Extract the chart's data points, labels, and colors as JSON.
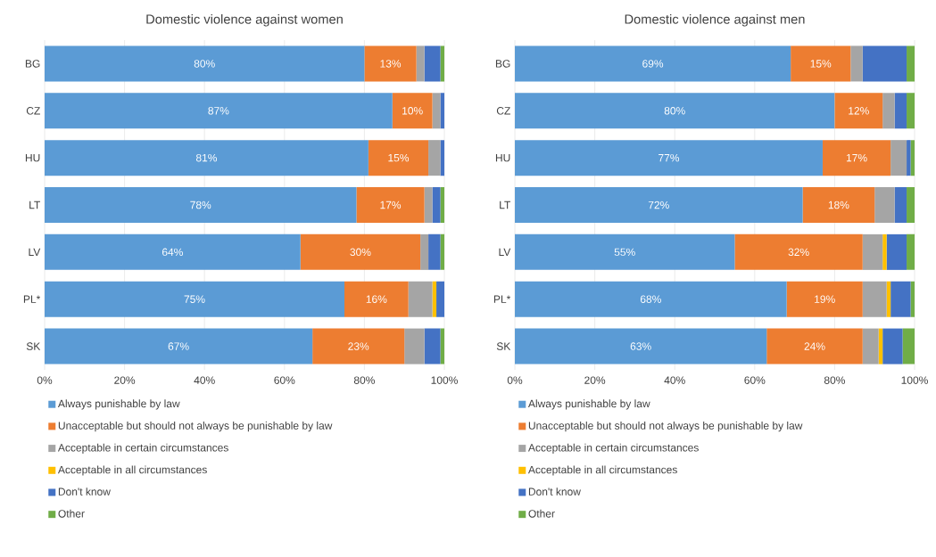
{
  "chart_data": [
    {
      "type": "bar",
      "orientation": "horizontal",
      "stacked": true,
      "title": "Domestic violence against women",
      "categories": [
        "BG",
        "CZ",
        "HU",
        "LT",
        "LV",
        "PL*",
        "SK"
      ],
      "xlim": [
        0,
        100
      ],
      "xticks": [
        {
          "value": 0,
          "label": "0%"
        },
        {
          "value": 20,
          "label": "20%"
        },
        {
          "value": 40,
          "label": "40%"
        },
        {
          "value": 60,
          "label": "60%"
        },
        {
          "value": 80,
          "label": "80%"
        },
        {
          "value": 100,
          "label": "100%"
        }
      ],
      "grid": "x",
      "legend": "bottom",
      "series": [
        {
          "name": "Always punishable by law",
          "color": "#5b9bd5",
          "values": [
            80,
            87,
            81,
            78,
            64,
            75,
            67
          ],
          "value_labels": [
            "80%",
            "87%",
            "81%",
            "78%",
            "64%",
            "75%",
            "67%"
          ]
        },
        {
          "name": "Unacceptable but should not always be punishable by law",
          "color": "#ed7d31",
          "values": [
            13,
            10,
            15,
            17,
            30,
            16,
            23
          ],
          "value_labels": [
            "13%",
            "10%",
            "15%",
            "17%",
            "30%",
            "16%",
            "23%"
          ]
        },
        {
          "name": "Acceptable in certain circumstances",
          "color": "#a5a5a5",
          "values": [
            2,
            2,
            3,
            2,
            2,
            6,
            5
          ]
        },
        {
          "name": "Acceptable in all circumstances",
          "color": "#ffc000",
          "values": [
            0,
            0,
            0,
            0,
            0,
            1,
            0
          ]
        },
        {
          "name": "Don't know",
          "color": "#4472c4",
          "values": [
            4,
            1,
            1,
            2,
            3,
            2,
            4
          ]
        },
        {
          "name": "Other",
          "color": "#70ad47",
          "values": [
            1,
            0,
            0,
            1,
            1,
            0,
            1
          ]
        }
      ]
    },
    {
      "type": "bar",
      "orientation": "horizontal",
      "stacked": true,
      "title": "Domestic violence against men",
      "categories": [
        "BG",
        "CZ",
        "HU",
        "LT",
        "LV",
        "PL*",
        "SK"
      ],
      "xlim": [
        0,
        100
      ],
      "xticks": [
        {
          "value": 0,
          "label": "0%"
        },
        {
          "value": 20,
          "label": "20%"
        },
        {
          "value": 40,
          "label": "40%"
        },
        {
          "value": 60,
          "label": "60%"
        },
        {
          "value": 80,
          "label": "80%"
        },
        {
          "value": 100,
          "label": "100%"
        }
      ],
      "grid": "x",
      "legend": "bottom",
      "series": [
        {
          "name": "Always punishable by law",
          "color": "#5b9bd5",
          "values": [
            69,
            80,
            77,
            72,
            55,
            68,
            63
          ],
          "value_labels": [
            "69%",
            "80%",
            "77%",
            "72%",
            "55%",
            "68%",
            "63%"
          ]
        },
        {
          "name": "Unacceptable but should not always be punishable by law",
          "color": "#ed7d31",
          "values": [
            15,
            12,
            17,
            18,
            32,
            19,
            24
          ],
          "value_labels": [
            "15%",
            "12%",
            "17%",
            "18%",
            "32%",
            "19%",
            "24%"
          ]
        },
        {
          "name": "Acceptable in certain circumstances",
          "color": "#a5a5a5",
          "values": [
            3,
            3,
            4,
            5,
            5,
            6,
            4
          ]
        },
        {
          "name": "Acceptable in all circumstances",
          "color": "#ffc000",
          "values": [
            0,
            0,
            0,
            0,
            1,
            1,
            1
          ]
        },
        {
          "name": "Don't know",
          "color": "#4472c4",
          "values": [
            11,
            3,
            1,
            3,
            5,
            5,
            5
          ]
        },
        {
          "name": "Other",
          "color": "#70ad47",
          "values": [
            2,
            2,
            1,
            2,
            2,
            1,
            3
          ]
        }
      ]
    }
  ]
}
